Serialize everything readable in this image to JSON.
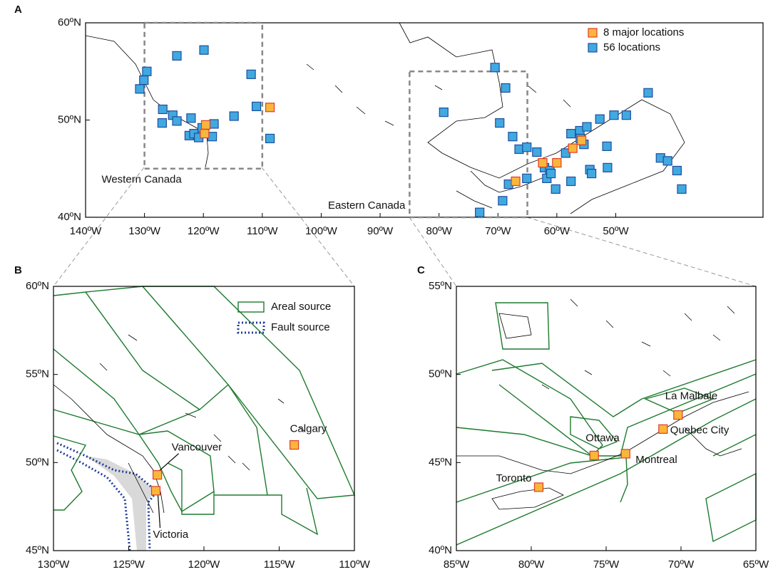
{
  "panels": [
    {
      "label": "A",
      "xlim": [
        -140,
        -25
      ],
      "ylim": [
        40,
        60
      ],
      "xticks": [
        {
          "value": -140,
          "label": "140ºW"
        },
        {
          "value": -130,
          "label": "130ºW"
        },
        {
          "value": -120,
          "label": "120ºW"
        },
        {
          "value": -110,
          "label": "110ºW"
        },
        {
          "value": -100,
          "label": "100ºW"
        },
        {
          "value": -90,
          "label": "90ºW"
        },
        {
          "value": -80,
          "label": "80ºW"
        },
        {
          "value": -70,
          "label": "70ºW"
        },
        {
          "value": -60,
          "label": "60ºW"
        },
        {
          "value": -50,
          "label": "50ºW"
        }
      ],
      "yticks": [
        {
          "value": 40,
          "label": "40ºN"
        },
        {
          "value": 50,
          "label": "50ºN"
        },
        {
          "value": 60,
          "label": "60ºN"
        }
      ],
      "legend": [
        "8 major locations",
        "56 locations"
      ],
      "regions": [
        {
          "name": "Western Canada",
          "lon": [
            -130,
            -110
          ],
          "lat": [
            45,
            60
          ]
        },
        {
          "name": "Eastern Canada",
          "lon": [
            -85,
            -65
          ],
          "lat": [
            40,
            55
          ]
        }
      ],
      "major": {
        "lon": [
          -119.6,
          -119.8,
          -108.7,
          -67.0,
          -62.4,
          -60.0,
          -57.3,
          -55.8
        ],
        "lat": [
          49.5,
          48.6,
          51.3,
          43.7,
          45.6,
          45.6,
          47.1,
          47.9
        ]
      },
      "locations": {
        "lon": [
          -124.5,
          -119.9,
          -129.6,
          -130.1,
          -130.8,
          -126.9,
          -127.0,
          -125.2,
          -124.5,
          -122.1,
          -122.4,
          -121.6,
          -120.8,
          -120.2,
          -118.5,
          -118.2,
          -114.8,
          -111.9,
          -111.0,
          -108.7,
          -70.5,
          -68.7,
          -79.2,
          -69.7,
          -67.5,
          -66.4,
          -65.1,
          -63.4,
          -65.1,
          -68.2,
          -69.2,
          -73.1,
          -62.1,
          -61.2,
          -60.2,
          -61.7,
          -58.5,
          -57.6,
          -57.6,
          -56.1,
          -54.9,
          -54.4,
          -55.4,
          -52.7,
          -51.5,
          -51.4,
          -50.3,
          -48.2,
          -44.5,
          -42.4,
          -41.2,
          -39.6,
          -38.8,
          -54.1,
          -61.0,
          -56.0
        ],
        "lat": [
          56.6,
          57.2,
          55.0,
          54.1,
          53.2,
          51.1,
          49.7,
          50.5,
          49.9,
          50.2,
          48.4,
          48.6,
          48.2,
          49.2,
          48.3,
          49.6,
          50.4,
          54.7,
          51.4,
          48.1,
          55.4,
          53.3,
          50.8,
          49.7,
          48.3,
          47.0,
          47.2,
          46.7,
          44.0,
          43.4,
          41.7,
          40.5,
          45.1,
          44.8,
          42.9,
          44.0,
          46.6,
          43.7,
          48.6,
          48.9,
          49.3,
          44.9,
          47.5,
          50.1,
          47.3,
          45.1,
          50.5,
          50.5,
          52.8,
          46.1,
          45.8,
          44.8,
          42.9,
          44.5,
          44.5,
          48.1
        ]
      }
    },
    {
      "label": "B",
      "xlim": [
        -130,
        -110
      ],
      "ylim": [
        45,
        60
      ],
      "xticks": [
        {
          "value": -130,
          "label": "130ºW"
        },
        {
          "value": -125,
          "label": "125ºW"
        },
        {
          "value": -120,
          "label": "120ºW"
        },
        {
          "value": -115,
          "label": "115ºW"
        },
        {
          "value": -110,
          "label": "110ºW"
        }
      ],
      "yticks": [
        {
          "value": 45,
          "label": "45ºN"
        },
        {
          "value": 50,
          "label": "50ºN"
        },
        {
          "value": 55,
          "label": "55ºN"
        },
        {
          "value": 60,
          "label": "60ºN"
        }
      ],
      "legend": [
        "Areal source",
        "Fault source"
      ],
      "cities": {
        "names": [
          "Vancouver",
          "Calgary",
          "Victoria"
        ],
        "lon": [
          -123.1,
          -114.0,
          -123.2
        ],
        "lat": [
          49.3,
          51.0,
          48.4
        ]
      }
    },
    {
      "label": "C",
      "xlim": [
        -85,
        -65
      ],
      "ylim": [
        40,
        55
      ],
      "xticks": [
        {
          "value": -85,
          "label": "85ºW"
        },
        {
          "value": -80,
          "label": "80ºW"
        },
        {
          "value": -75,
          "label": "75ºW"
        },
        {
          "value": -70,
          "label": "70ºW"
        },
        {
          "value": -65,
          "label": "65ºW"
        }
      ],
      "yticks": [
        {
          "value": 40,
          "label": "40ºN"
        },
        {
          "value": 45,
          "label": "45ºN"
        },
        {
          "value": 50,
          "label": "50ºN"
        },
        {
          "value": 55,
          "label": "55ºN"
        }
      ],
      "cities": {
        "names": [
          "Toronto",
          "Ottawa",
          "Montreal",
          "Quebec City",
          "La Malbaie"
        ],
        "lon": [
          -79.5,
          -75.8,
          -73.7,
          -71.2,
          -70.2
        ],
        "lat": [
          43.6,
          45.4,
          45.5,
          46.9,
          47.7
        ]
      }
    }
  ]
}
